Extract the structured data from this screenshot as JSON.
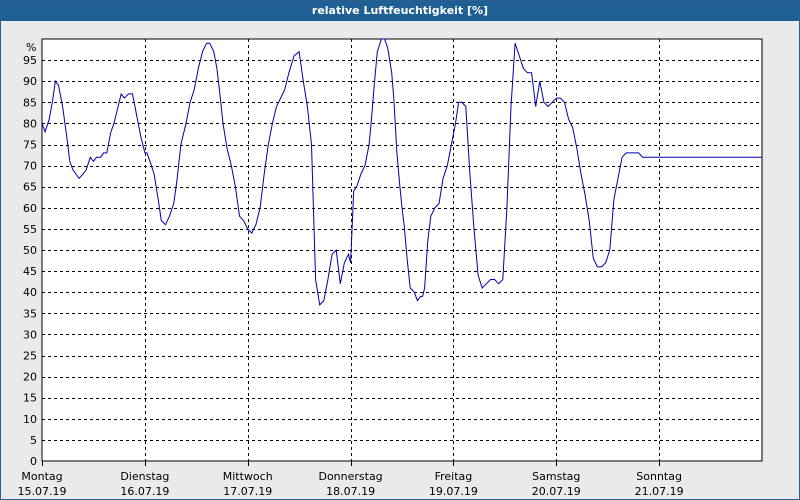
{
  "window": {
    "title": "relative Luftfeuchtigkeit [%]"
  },
  "chart_data": {
    "type": "line",
    "title": "relative Luftfeuchtigkeit [%]",
    "ylabel_unit": "%",
    "ylim": [
      0,
      100
    ],
    "yticks": [
      0,
      5,
      10,
      15,
      20,
      25,
      30,
      35,
      40,
      45,
      50,
      55,
      60,
      65,
      70,
      75,
      80,
      85,
      90,
      95
    ],
    "xlim": [
      0,
      7
    ],
    "grid": true,
    "x_tick_labels": [
      {
        "day": "Montag",
        "date": "15.07.19"
      },
      {
        "day": "Dienstag",
        "date": "16.07.19"
      },
      {
        "day": "Mittwoch",
        "date": "17.07.19"
      },
      {
        "day": "Donnerstag",
        "date": "18.07.19"
      },
      {
        "day": "Freitag",
        "date": "19.07.19"
      },
      {
        "day": "Samstag",
        "date": "20.07.19"
      },
      {
        "day": "Sonntag",
        "date": "21.07.19"
      }
    ],
    "colors": {
      "series": "#0000aa",
      "grid": "#000000",
      "plot_bg": "#ffffff"
    },
    "series": [
      {
        "x": [
          0.0,
          0.03,
          0.07,
          0.1,
          0.13,
          0.16,
          0.2,
          0.24,
          0.27,
          0.3,
          0.33,
          0.36,
          0.4,
          0.43,
          0.47,
          0.5,
          0.53,
          0.57,
          0.6,
          0.63,
          0.67,
          0.7,
          0.74,
          0.77,
          0.8,
          0.84,
          0.88,
          0.92,
          0.96,
          1.0,
          1.02,
          1.05,
          1.09,
          1.13,
          1.16,
          1.2,
          1.24,
          1.28,
          1.31,
          1.35,
          1.4,
          1.44,
          1.48,
          1.52,
          1.56,
          1.6,
          1.63,
          1.67,
          1.7,
          1.73,
          1.76,
          1.8,
          1.84,
          1.88,
          1.92,
          1.96,
          2.0,
          2.04,
          2.08,
          2.12,
          2.16,
          2.2,
          2.24,
          2.28,
          2.32,
          2.36,
          2.4,
          2.45,
          2.5,
          2.54,
          2.58,
          2.62,
          2.66,
          2.7,
          2.74,
          2.78,
          2.82,
          2.86,
          2.9,
          2.94,
          2.98,
          3.0,
          3.03,
          3.06,
          3.1,
          3.14,
          3.18,
          3.2,
          3.23,
          3.26,
          3.3,
          3.33,
          3.36,
          3.38,
          3.4,
          3.42,
          3.45,
          3.48,
          3.5,
          3.52,
          3.55,
          3.58,
          3.62,
          3.65,
          3.68,
          3.7,
          3.72,
          3.75,
          3.78,
          3.82,
          3.86,
          3.9,
          3.94,
          3.98,
          4.02,
          4.05,
          4.08,
          4.12,
          4.16,
          4.2,
          4.24,
          4.28,
          4.32,
          4.36,
          4.4,
          4.44,
          4.48,
          4.52,
          4.56,
          4.6,
          4.64,
          4.68,
          4.72,
          4.76,
          4.8,
          4.84,
          4.88,
          4.92,
          4.96,
          5.0,
          5.04,
          5.08,
          5.12,
          5.16,
          5.2,
          5.24,
          5.28,
          5.32,
          5.36,
          5.4,
          5.44,
          5.48,
          5.52,
          5.56,
          5.6,
          5.64,
          5.68,
          5.72,
          5.76,
          5.8,
          5.84,
          5.88,
          5.92,
          5.96,
          6.0,
          6.04,
          6.08,
          6.12,
          6.16,
          6.2,
          6.24,
          6.28,
          6.32,
          6.36,
          6.4,
          6.44,
          6.48,
          6.52,
          6.56,
          6.6,
          6.64,
          6.68,
          6.72,
          6.76,
          6.8,
          6.84,
          6.88,
          6.92,
          6.96,
          7.0
        ],
        "values": [
          80,
          78,
          81,
          85,
          90,
          89,
          84,
          77,
          71,
          69,
          68,
          67,
          68,
          69,
          72,
          71,
          72,
          72,
          73,
          73,
          78,
          80,
          84,
          87,
          86,
          87,
          87,
          82,
          77,
          73,
          73,
          71,
          68,
          62,
          57,
          56,
          58,
          61,
          66,
          75,
          80,
          85,
          88,
          93,
          97,
          99,
          99,
          97,
          93,
          87,
          80,
          74,
          70,
          65,
          58,
          57,
          55,
          54,
          56,
          60,
          68,
          75,
          80,
          84,
          86,
          88,
          92,
          96,
          97,
          90,
          84,
          75,
          43,
          37,
          38,
          43,
          49,
          50,
          42,
          47,
          49,
          47,
          64,
          65,
          68,
          70,
          75,
          80,
          89,
          97,
          100,
          100,
          98,
          95,
          92,
          86,
          73,
          65,
          60,
          56,
          48,
          41,
          40,
          38,
          39,
          39,
          41,
          52,
          58,
          60,
          61,
          67,
          70,
          75,
          80,
          85,
          85,
          84,
          68,
          55,
          44,
          41,
          42,
          43,
          43,
          42,
          43,
          60,
          84,
          99,
          96,
          93,
          92,
          92,
          84,
          90,
          85,
          84,
          85,
          86,
          86,
          85,
          81,
          79,
          74,
          68,
          63,
          57,
          48,
          46,
          46,
          47,
          50,
          62,
          67,
          72,
          73,
          73,
          73,
          73,
          72,
          72,
          72,
          72,
          72,
          72,
          72,
          72,
          72,
          72,
          72,
          72,
          72,
          72,
          72,
          72,
          72,
          72,
          72,
          72,
          72,
          72,
          72,
          72,
          72,
          72,
          72,
          72,
          72,
          72
        ]
      }
    ]
  }
}
